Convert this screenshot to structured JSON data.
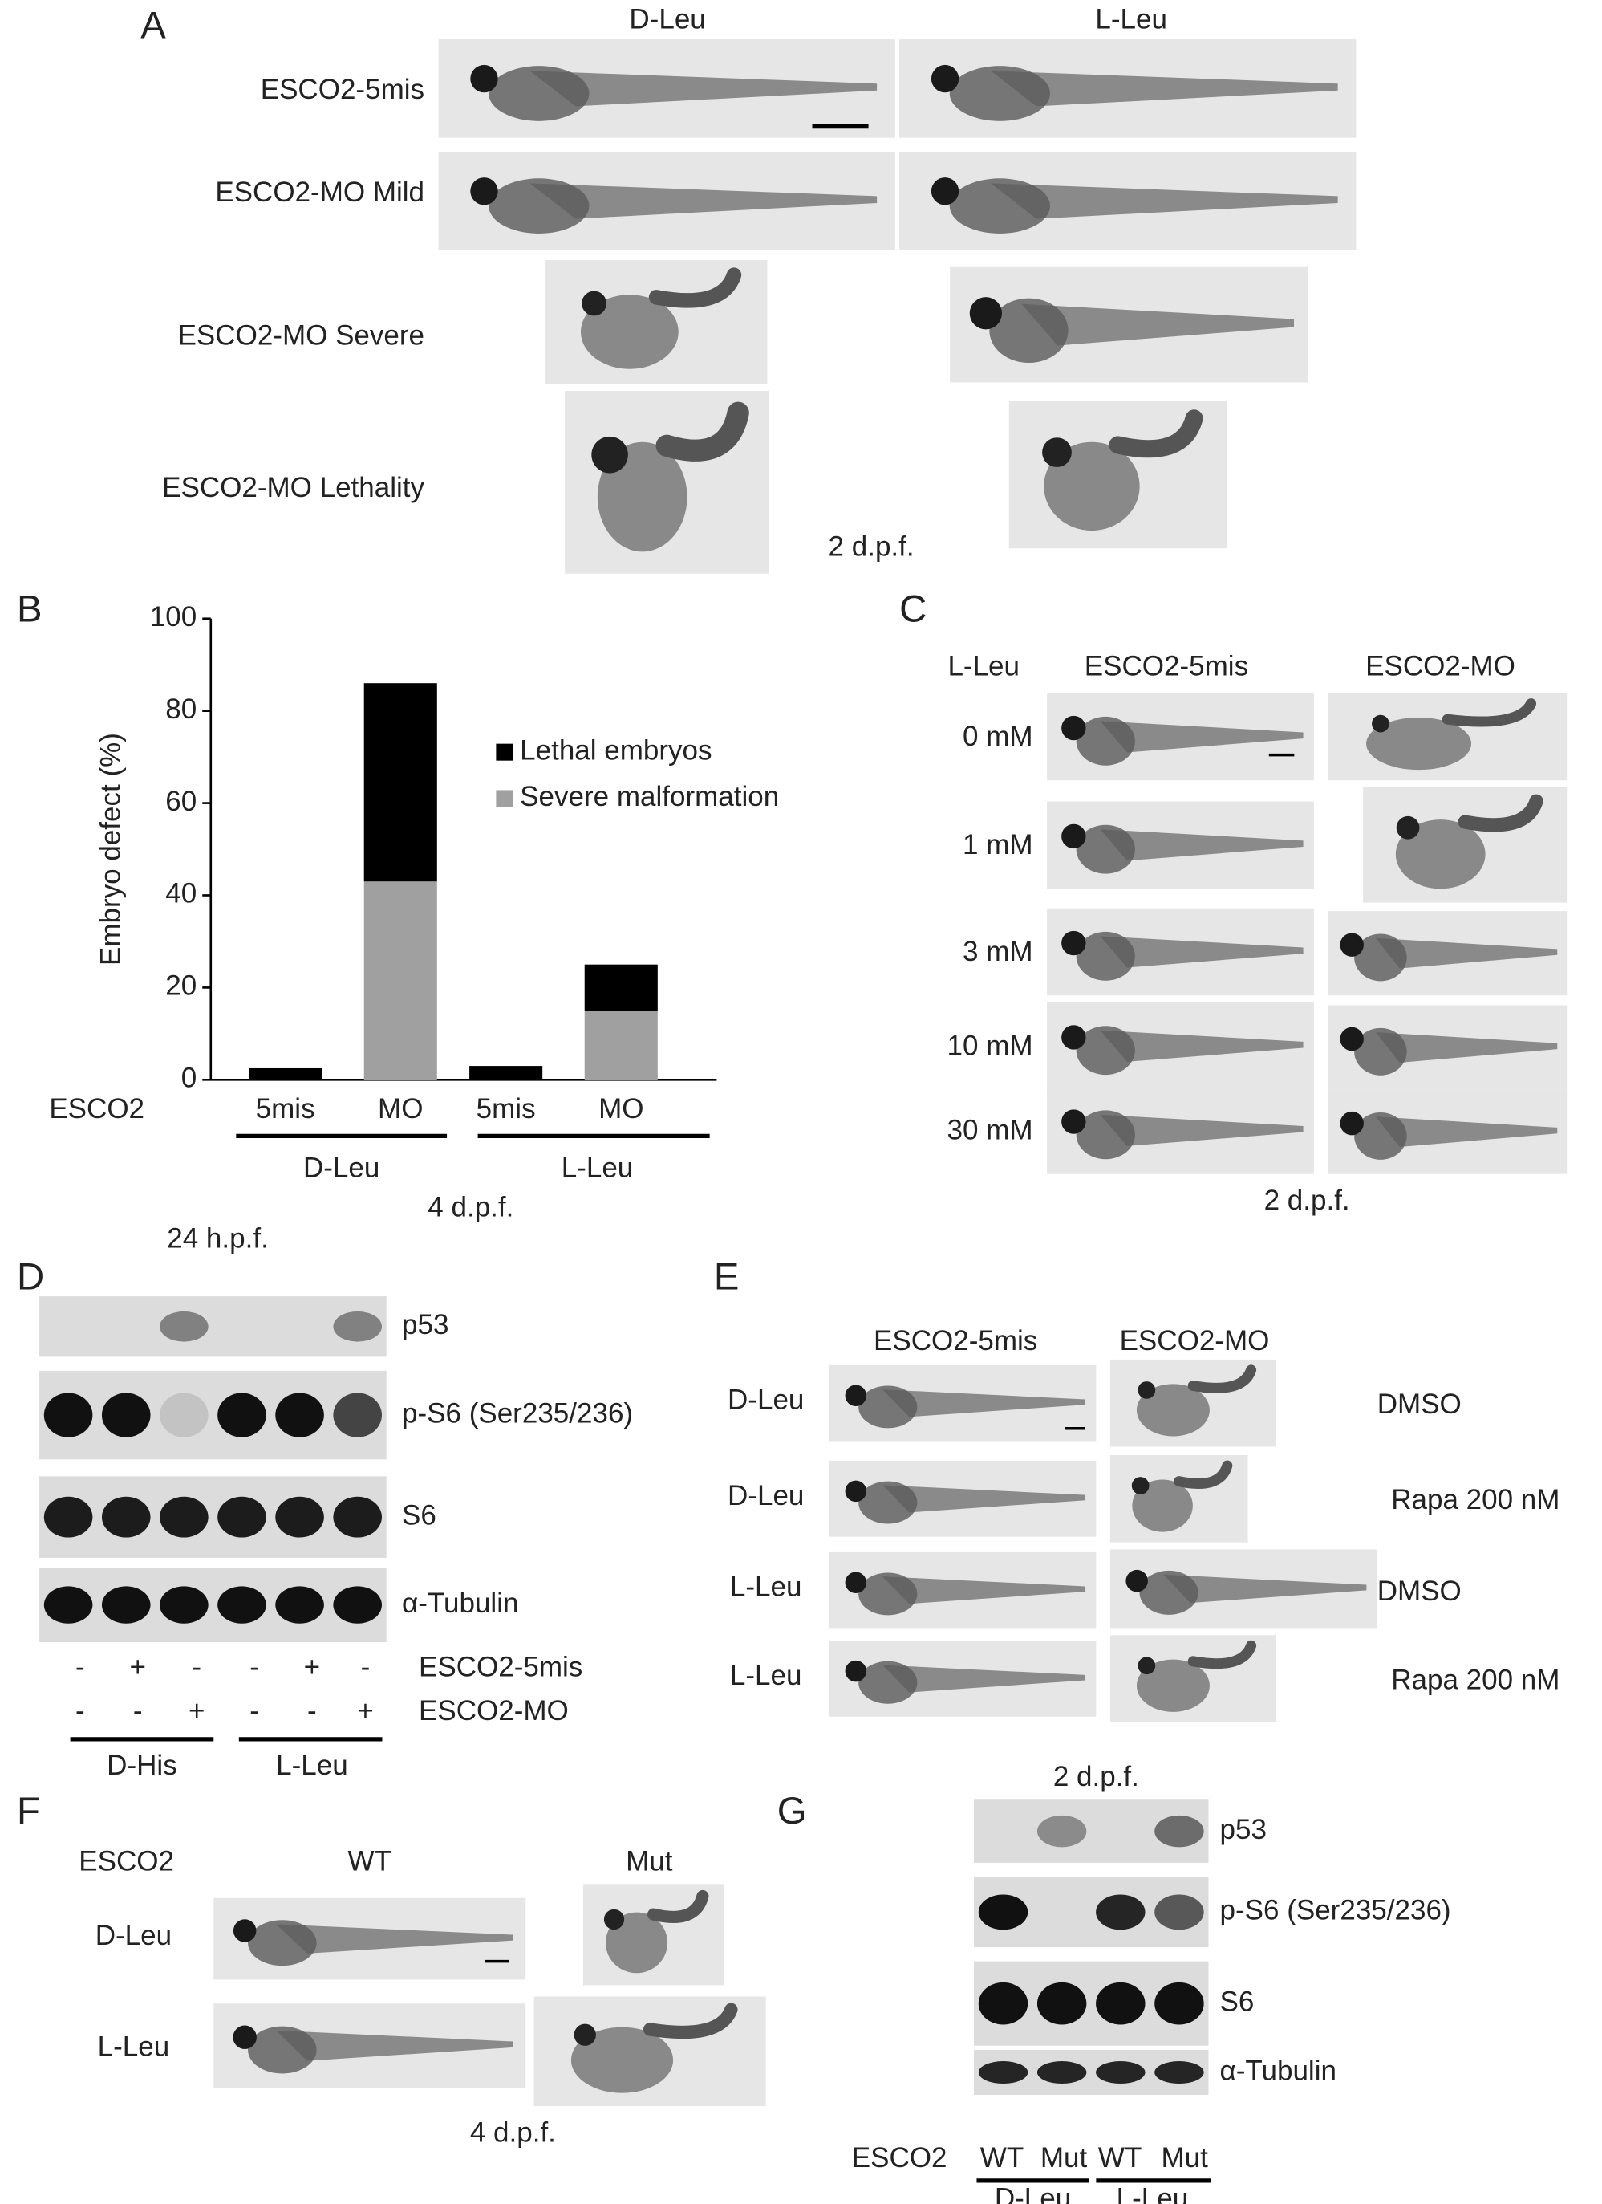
{
  "chart_data": {
    "type": "bar",
    "stacked": true,
    "panel_label": "B",
    "ylabel": "Embryo defect (%)",
    "categories": [
      "5mis",
      "MO",
      "5mis",
      "MO"
    ],
    "category_row_label": "ESCO2",
    "groups": [
      "D-Leu",
      "L-Leu"
    ],
    "footnote": "4 d.p.f.",
    "series": [
      {
        "name": "Severe malformation",
        "color": "#a0a0a0",
        "values": [
          0,
          43,
          0,
          15
        ]
      },
      {
        "name": "Lethal embryos",
        "color": "#000000",
        "values": [
          2.5,
          43,
          3,
          10
        ]
      }
    ],
    "ylim": [
      0,
      100
    ],
    "yticks": [
      0,
      20,
      40,
      60,
      80,
      100
    ]
  },
  "panels": {
    "A": {
      "label": "A",
      "columns": [
        "D-Leu",
        "L-Leu"
      ],
      "rows": [
        "ESCO2-5mis",
        "ESCO2-MO  Mild",
        "ESCO2-MO Severe",
        "ESCO2-MO Lethality"
      ],
      "stage": "2 d.p.f."
    },
    "C": {
      "label": "C",
      "corner": "L-Leu",
      "columns": [
        "ESCO2-5mis",
        "ESCO2-MO"
      ],
      "rows": [
        "0 mM",
        "1 mM",
        "3 mM",
        "10 mM",
        "30 mM"
      ],
      "stage": "2 d.p.f."
    },
    "D": {
      "label": "D",
      "stage": "24 h.p.f.",
      "blots": [
        "p53",
        "p-S6 (Ser235/236)",
        "S6",
        "α-Tubulin"
      ],
      "conditions": [
        {
          "name": "ESCO2-5mis",
          "signs": [
            "-",
            "+",
            "-",
            "-",
            "+",
            "-"
          ]
        },
        {
          "name": "ESCO2-MO",
          "signs": [
            "-",
            "-",
            "+",
            "-",
            "-",
            "+"
          ]
        }
      ],
      "groups": [
        "D-His",
        "L-Leu"
      ]
    },
    "E": {
      "label": "E",
      "columns": [
        "ESCO2-5mis",
        "ESCO2-MO"
      ],
      "rows": [
        {
          "name": "D-Leu",
          "treatment": "DMSO"
        },
        {
          "name": "D-Leu",
          "treatment": "Rapa 200 nM"
        },
        {
          "name": "L-Leu",
          "treatment": "DMSO"
        },
        {
          "name": "L-Leu",
          "treatment": "Rapa 200 nM"
        }
      ]
    },
    "F": {
      "label": "F",
      "corner": "ESCO2",
      "columns": [
        "WT",
        "Mut"
      ],
      "rows": [
        "D-Leu",
        "L-Leu"
      ],
      "stage": "4 d.p.f."
    },
    "G": {
      "label": "G",
      "stage": "2 d.p.f.",
      "blots": [
        "p53",
        "p-S6 (Ser235/236)",
        "S6",
        "α-Tubulin"
      ],
      "row_label": "ESCO2",
      "lanes": [
        "WT",
        "Mut",
        "WT",
        "Mut"
      ],
      "groups": [
        "D-Leu",
        "L-Leu"
      ]
    }
  }
}
